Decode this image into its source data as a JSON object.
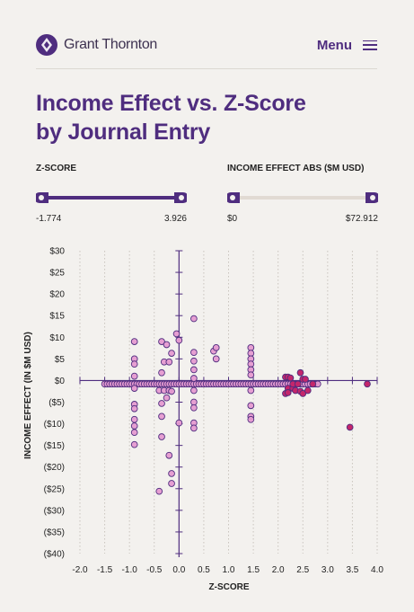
{
  "header": {
    "brand": "Grant Thornton",
    "menu_label": "Menu"
  },
  "page_title_lines": [
    "Income Effect vs. Z-Score",
    "by Journal Entry"
  ],
  "sliders": [
    {
      "label": "Z-SCORE",
      "min": "-1.774",
      "max": "3.926",
      "range_fraction": [
        0,
        1
      ]
    },
    {
      "label": "INCOME EFFECT ABS ($M USD)",
      "min": "$0",
      "max": "$72.912",
      "range_fraction": [
        0,
        1
      ]
    }
  ],
  "colors": {
    "brand_purple": "#4f2d7f",
    "point_light": "#e59ad0",
    "point_dark": "#c4266b",
    "track_inactive": "#e1dad3"
  },
  "chart_data": {
    "type": "scatter",
    "xlabel": "Z-SCORE",
    "ylabel": "INCOME EFFECT (IN $M USD)",
    "xlim": [
      -2.0,
      4.0
    ],
    "ylim": [
      -40,
      30
    ],
    "x_ticks": [
      -2.0,
      -1.5,
      -1.0,
      -0.5,
      0.0,
      0.5,
      1.0,
      1.5,
      2.0,
      2.5,
      3.0,
      3.5,
      4.0
    ],
    "x_tick_labels": [
      "-2.0",
      "-1.5",
      "-1.0",
      "-0.5",
      "0.0",
      "0.5",
      "1.0",
      "1.5",
      "2.0",
      "2.5",
      "3.0",
      "3.5",
      "4.0"
    ],
    "y_ticks": [
      30,
      25,
      20,
      15,
      10,
      5,
      0,
      -5,
      -10,
      -15,
      -20,
      -25,
      -30,
      -35,
      -40
    ],
    "y_tick_labels": [
      "$30",
      "$25",
      "$20",
      "$15",
      "$10",
      "$5",
      "$0",
      "($5)",
      "($10)",
      "($15)",
      "($20)",
      "($25)",
      "($30)",
      "($35)",
      "($40)"
    ],
    "grid": "vertical-dotted",
    "points": [
      [
        -1.5,
        -0.8
      ],
      [
        -1.45,
        -0.8
      ],
      [
        -1.4,
        -0.8
      ],
      [
        -1.35,
        -0.8
      ],
      [
        -1.3,
        -0.8
      ],
      [
        -1.25,
        -0.8
      ],
      [
        -1.2,
        -0.8
      ],
      [
        -1.15,
        -0.8
      ],
      [
        -1.1,
        -0.8
      ],
      [
        -1.05,
        -0.8
      ],
      [
        -1.0,
        -0.8
      ],
      [
        -0.95,
        -0.8
      ],
      [
        -0.9,
        -0.8
      ],
      [
        -0.85,
        -0.8
      ],
      [
        -0.8,
        -0.8
      ],
      [
        -0.75,
        -0.8
      ],
      [
        -0.7,
        -0.8
      ],
      [
        -0.65,
        -0.8
      ],
      [
        -0.6,
        -0.8
      ],
      [
        -0.55,
        -0.8
      ],
      [
        -0.5,
        -0.8
      ],
      [
        -0.45,
        -0.8
      ],
      [
        -0.4,
        -0.8
      ],
      [
        -0.35,
        -0.8
      ],
      [
        -0.3,
        -0.8
      ],
      [
        -0.25,
        -0.8
      ],
      [
        -0.2,
        -0.8
      ],
      [
        -0.15,
        -0.8
      ],
      [
        -0.1,
        -0.8
      ],
      [
        -0.05,
        -0.8
      ],
      [
        0.0,
        -0.8
      ],
      [
        0.05,
        -0.8
      ],
      [
        0.1,
        -0.8
      ],
      [
        0.15,
        -0.8
      ],
      [
        0.2,
        -0.8
      ],
      [
        0.25,
        -0.8
      ],
      [
        0.3,
        -0.8
      ],
      [
        0.35,
        -0.8
      ],
      [
        0.4,
        -0.8
      ],
      [
        0.45,
        -0.8
      ],
      [
        0.5,
        -0.8
      ],
      [
        0.55,
        -0.8
      ],
      [
        0.6,
        -0.8
      ],
      [
        0.65,
        -0.8
      ],
      [
        0.7,
        -0.8
      ],
      [
        0.75,
        -0.8
      ],
      [
        0.8,
        -0.8
      ],
      [
        0.85,
        -0.8
      ],
      [
        0.9,
        -0.8
      ],
      [
        0.95,
        -0.8
      ],
      [
        1.0,
        -0.8
      ],
      [
        1.05,
        -0.8
      ],
      [
        1.1,
        -0.8
      ],
      [
        1.15,
        -0.8
      ],
      [
        1.2,
        -0.8
      ],
      [
        1.25,
        -0.8
      ],
      [
        1.3,
        -0.8
      ],
      [
        1.35,
        -0.8
      ],
      [
        1.4,
        -0.8
      ],
      [
        1.45,
        -0.8
      ],
      [
        1.5,
        -0.8
      ],
      [
        1.55,
        -0.8
      ],
      [
        1.6,
        -0.8
      ],
      [
        1.65,
        -0.8
      ],
      [
        1.7,
        -0.8
      ],
      [
        1.75,
        -0.8
      ],
      [
        1.8,
        -0.8
      ],
      [
        1.85,
        -0.8
      ],
      [
        1.9,
        -0.8
      ],
      [
        1.95,
        -0.8
      ],
      [
        2.0,
        -0.8
      ],
      [
        2.05,
        -0.8
      ],
      [
        2.1,
        -0.8
      ],
      [
        2.15,
        -0.8
      ],
      [
        2.2,
        -0.8
      ],
      [
        2.25,
        -0.8
      ],
      [
        2.3,
        -0.8
      ],
      [
        2.35,
        -0.8
      ],
      [
        2.4,
        -0.8
      ],
      [
        2.45,
        -0.8
      ],
      [
        2.5,
        -0.8
      ],
      [
        2.55,
        -0.8
      ],
      [
        2.6,
        -0.8
      ],
      [
        2.65,
        -0.8
      ],
      [
        2.7,
        -0.8
      ],
      [
        2.75,
        -0.8
      ],
      [
        2.8,
        -0.8
      ],
      [
        -0.9,
        9.0
      ],
      [
        -0.9,
        5.0
      ],
      [
        -0.9,
        3.8
      ],
      [
        -0.9,
        1.0
      ],
      [
        -0.9,
        -1.8
      ],
      [
        -0.9,
        -5.5
      ],
      [
        -0.9,
        -6.5
      ],
      [
        -0.9,
        -9.0
      ],
      [
        -0.9,
        -10.5
      ],
      [
        -0.9,
        -12.0
      ],
      [
        -0.9,
        -14.8
      ],
      [
        -0.35,
        9.0
      ],
      [
        -0.25,
        8.3
      ],
      [
        -0.15,
        6.3
      ],
      [
        -0.3,
        4.3
      ],
      [
        -0.2,
        4.3
      ],
      [
        -0.35,
        1.8
      ],
      [
        -0.4,
        -2.3
      ],
      [
        -0.3,
        -2.3
      ],
      [
        -0.2,
        -2.3
      ],
      [
        -0.35,
        -5.3
      ],
      [
        -0.35,
        -8.3
      ],
      [
        -0.35,
        -13.0
      ],
      [
        -0.4,
        -25.6
      ],
      [
        -0.2,
        -17.3
      ],
      [
        -0.15,
        -21.5
      ],
      [
        -0.15,
        -23.8
      ],
      [
        -0.05,
        10.8
      ],
      [
        0.0,
        9.3
      ],
      [
        0.0,
        -9.8
      ],
      [
        -0.15,
        -2.5
      ],
      [
        -0.25,
        -4.0
      ],
      [
        0.3,
        14.3
      ],
      [
        0.3,
        6.5
      ],
      [
        0.3,
        4.5
      ],
      [
        0.3,
        2.5
      ],
      [
        0.3,
        0.5
      ],
      [
        0.3,
        -2.3
      ],
      [
        0.3,
        -5.0
      ],
      [
        0.3,
        -6.3
      ],
      [
        0.3,
        -9.8
      ],
      [
        0.3,
        -11.0
      ],
      [
        0.7,
        6.8
      ],
      [
        0.75,
        7.6
      ],
      [
        0.75,
        5.0
      ],
      [
        1.45,
        7.6
      ],
      [
        1.45,
        6.3
      ],
      [
        1.45,
        5.0
      ],
      [
        1.45,
        3.8
      ],
      [
        1.45,
        2.5
      ],
      [
        1.45,
        1.3
      ],
      [
        1.45,
        -2.3
      ],
      [
        1.45,
        -5.8
      ],
      [
        1.45,
        -8.3
      ],
      [
        1.45,
        -9.0
      ]
    ],
    "points_dark": [
      [
        2.15,
        0.8
      ],
      [
        2.2,
        0.8
      ],
      [
        2.25,
        0.6
      ],
      [
        2.45,
        1.8
      ],
      [
        2.5,
        0.3
      ],
      [
        2.55,
        0.3
      ],
      [
        2.2,
        -1.8
      ],
      [
        2.3,
        -1.8
      ],
      [
        2.15,
        -3.0
      ],
      [
        2.2,
        -2.8
      ],
      [
        2.35,
        -2.3
      ],
      [
        2.45,
        -2.5
      ],
      [
        2.5,
        -3.0
      ],
      [
        2.6,
        -2.3
      ],
      [
        2.3,
        -0.8
      ],
      [
        2.4,
        -0.8
      ],
      [
        2.7,
        -0.8
      ],
      [
        3.45,
        -10.8
      ],
      [
        3.8,
        -0.8
      ]
    ]
  }
}
